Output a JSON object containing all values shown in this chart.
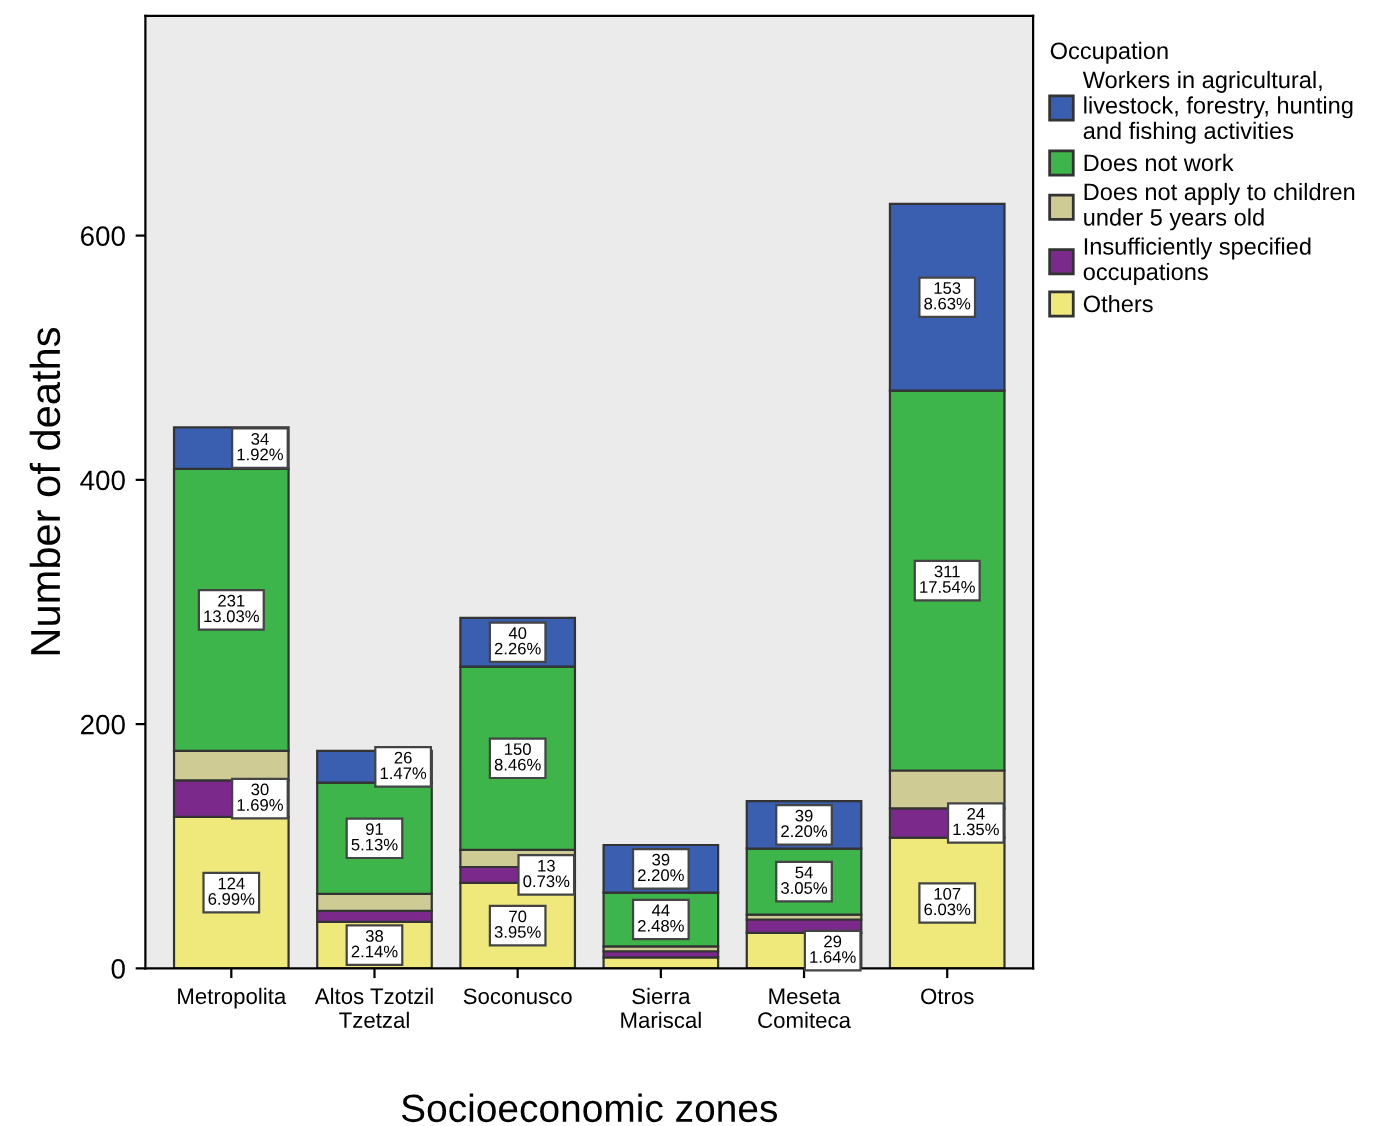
{
  "chart_data": {
    "type": "bar",
    "stacked": true,
    "xlabel": "Socioeconomic zones",
    "ylabel": "Number of deaths",
    "legend_title": "Occupation",
    "categories": [
      "Metropolita",
      "Altos Tzotzil\nTzetzal",
      "Soconusco",
      "Sierra\nMariscal",
      "Meseta\nComiteca",
      "Otros"
    ],
    "series": [
      {
        "name": "Others",
        "color": "#efe97c",
        "values": [
          124,
          38,
          70,
          9,
          29,
          107
        ],
        "value_labels": [
          "124\n6.99%",
          "38\n2.14%",
          "70\n3.95%",
          null,
          "29\n1.64%",
          "107\n6.03%"
        ]
      },
      {
        "name": "Insufficiently specified\noccupations",
        "color": "#7b2a8c",
        "values": [
          30,
          9,
          13,
          5,
          11,
          24
        ],
        "value_labels": [
          "30\n1.69%",
          null,
          "13\n0.73%",
          null,
          null,
          "24\n1.35%"
        ]
      },
      {
        "name": "Does not apply to children\nunder 5 years old",
        "color": "#cfcb94",
        "values": [
          24,
          14,
          14,
          4,
          4,
          31
        ],
        "value_labels": [
          null,
          null,
          null,
          null,
          null,
          null
        ]
      },
      {
        "name": "Does not work",
        "color": "#3db54a",
        "values": [
          231,
          91,
          150,
          44,
          54,
          311
        ],
        "value_labels": [
          "231\n13.03%",
          "91\n5.13%",
          "150\n8.46%",
          "44\n2.48%",
          "54\n3.05%",
          "311\n17.54%"
        ]
      },
      {
        "name": "Workers in agricultural,\nlivestock, forestry, hunting\nand fishing activities",
        "color": "#3a5fb0",
        "values": [
          34,
          26,
          40,
          39,
          39,
          153
        ],
        "value_labels": [
          "34\n1.92%",
          "26\n1.47%",
          "40\n2.26%",
          "39\n2.20%",
          "39\n2.20%",
          "153\n8.63%"
        ]
      }
    ],
    "ylim": [
      0,
      780
    ],
    "yticks": [
      0,
      200,
      400,
      600
    ],
    "grid": false,
    "legend": "top right"
  }
}
